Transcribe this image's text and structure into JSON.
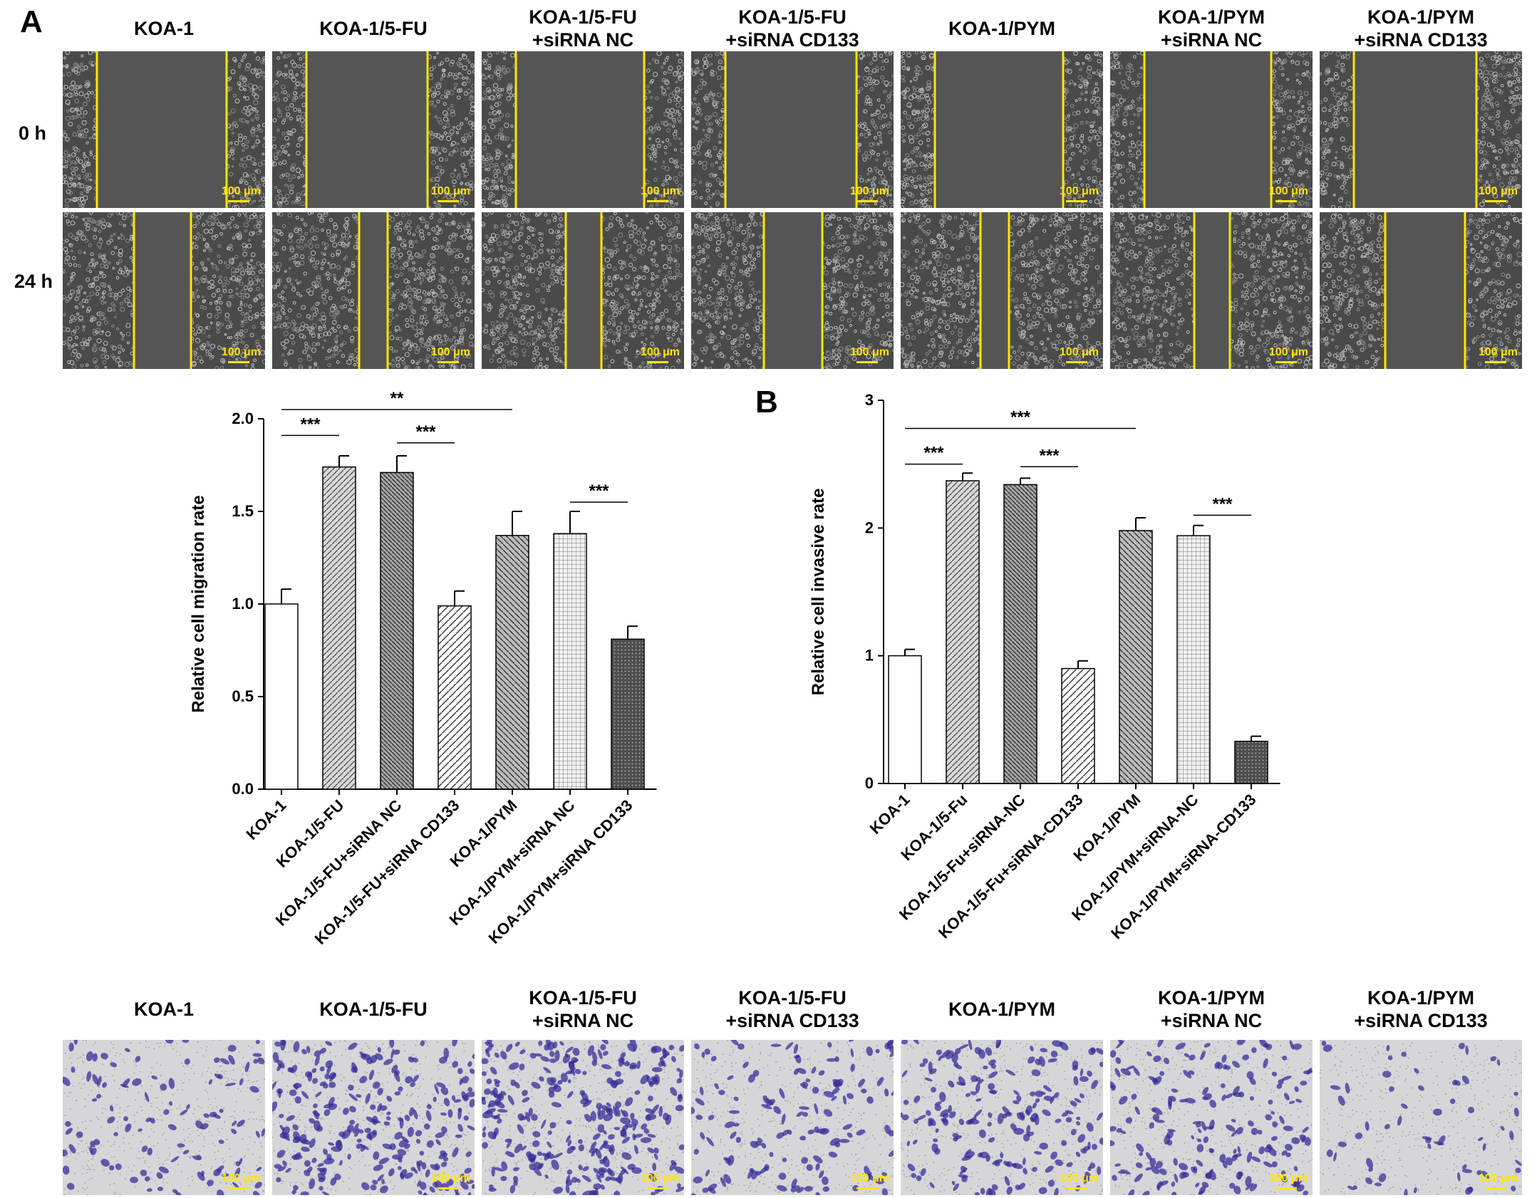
{
  "figure": {
    "panel_a_letter": "A",
    "panel_b_letter": "B",
    "groups_scratch": [
      "KOA-1",
      "KOA-1/5-FU",
      "KOA-1/5-FU\n+siRNA NC",
      "KOA-1/5-FU\n+siRNA CD133",
      "KOA-1/PYM",
      "KOA-1/PYM\n+siRNA NC",
      "KOA-1/PYM\n+siRNA CD133"
    ],
    "row_labels": [
      "0 h",
      "24 h"
    ],
    "scale_bar_text": "100 μm",
    "colors": {
      "scratch_bg": "#4a4a4a",
      "scratch_cells": "#bdbdbd",
      "scratch_line": "#ffe600",
      "transwell_bg": "#d6d6d8",
      "transwell_cells": "#3a2f9a",
      "bar_edge": "#000000"
    }
  },
  "chart_data": [
    {
      "type": "bar",
      "title": "",
      "xlabel": "",
      "ylabel": "Relative cell migration rate",
      "ylim": [
        0,
        2.0
      ],
      "yticks": [
        "0.0",
        "0.5",
        "1.0",
        "1.5",
        "2.0"
      ],
      "categories": [
        "KOA-1",
        "KOA-1/5-FU",
        "KOA-1/5-FU+siRNA NC",
        "KOA-1/5-FU+siRNA CD133",
        "KOA-1/PYM",
        "KOA-1/PYM+siRNA NC",
        "KOA-1/PYM+siRNA CD133"
      ],
      "values": [
        1.0,
        1.74,
        1.71,
        0.99,
        1.37,
        1.38,
        0.81
      ],
      "errors": [
        0.08,
        0.06,
        0.09,
        0.08,
        0.13,
        0.12,
        0.07
      ],
      "patterns": [
        "white",
        "diag-right",
        "diag-left-dark",
        "diag-right-sparse",
        "diag-left",
        "grid",
        "dots-dark"
      ],
      "significance": [
        {
          "from": 0,
          "to": 4,
          "label": "**"
        },
        {
          "from": 0,
          "to": 1,
          "label": "***"
        },
        {
          "from": 2,
          "to": 3,
          "label": "***"
        },
        {
          "from": 5,
          "to": 6,
          "label": "***"
        }
      ]
    },
    {
      "type": "bar",
      "title": "",
      "xlabel": "",
      "ylabel": "Relative cell invasive rate",
      "ylim": [
        0,
        3
      ],
      "yticks": [
        "0",
        "1",
        "2",
        "3"
      ],
      "categories": [
        "KOA-1",
        "KOA-1/5-Fu",
        "KOA-1/5-Fu+siRNA-NC",
        "KOA-1/5-Fu+siRNA-CD133",
        "KOA-1/PYM",
        "KOA-1/PYM+siRNA-NC",
        "KOA-1/PYM+siRNA-CD133"
      ],
      "values": [
        1.0,
        2.37,
        2.34,
        0.9,
        1.98,
        1.94,
        0.33
      ],
      "errors": [
        0.05,
        0.06,
        0.05,
        0.06,
        0.1,
        0.08,
        0.04
      ],
      "patterns": [
        "white",
        "diag-right",
        "diag-left-dark",
        "diag-right-sparse",
        "diag-left",
        "grid",
        "dots-dark"
      ],
      "significance": [
        {
          "from": 0,
          "to": 4,
          "label": "***"
        },
        {
          "from": 0,
          "to": 1,
          "label": "***"
        },
        {
          "from": 2,
          "to": 3,
          "label": "***"
        },
        {
          "from": 5,
          "to": 6,
          "label": "***"
        }
      ]
    }
  ]
}
